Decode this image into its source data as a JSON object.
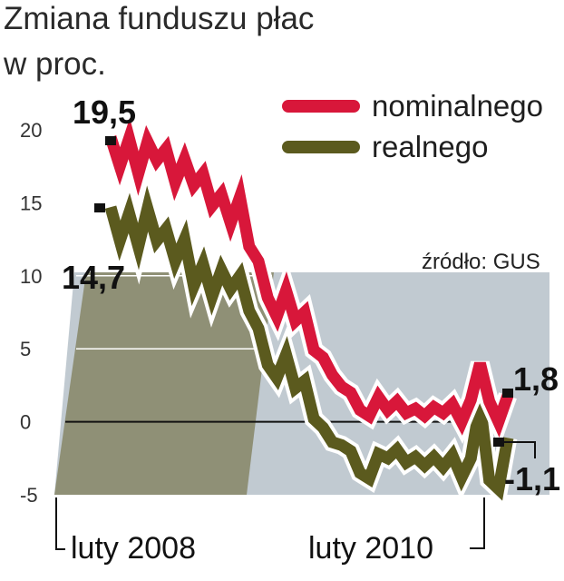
{
  "chart_data": {
    "type": "line",
    "title": "Zmiana funduszu płac",
    "subtitle": "w proc.",
    "source": "źródło: GUS",
    "ylim": [
      -5,
      20
    ],
    "yticks": [
      "20",
      "15",
      "10",
      "5",
      "0",
      "-5"
    ],
    "x_start_label": "luty 2008",
    "x_end_label": "luty 2010",
    "series": [
      {
        "name": "nominalnego",
        "color": "#d8173a",
        "values": [
          19.5,
          17.5,
          19.4,
          17.0,
          19.2,
          17.9,
          18.7,
          16.4,
          18.0,
          16.2,
          17.0,
          14.8,
          15.6,
          13.6,
          15.4,
          12.0,
          11.0,
          8.5,
          7.2,
          9.0,
          6.9,
          7.5,
          4.9,
          4.4,
          3.2,
          2.4,
          2.0,
          0.8,
          0.4,
          1.7,
          0.8,
          1.4,
          0.6,
          0.9,
          0.4,
          1.0,
          0.6,
          1.2,
          0.0,
          1.5,
          4.0,
          1.4,
          0.0,
          1.8
        ]
      },
      {
        "name": "realnego",
        "color": "#5b5a1e",
        "values": [
          14.7,
          12.4,
          14.3,
          12.0,
          14.6,
          12.4,
          13.2,
          11.0,
          12.5,
          9.3,
          10.8,
          8.6,
          10.4,
          9.1,
          10.0,
          7.6,
          6.4,
          3.9,
          3.0,
          4.6,
          2.3,
          2.8,
          0.2,
          -0.4,
          -1.4,
          -1.6,
          -2.0,
          -3.5,
          -3.9,
          -2.2,
          -2.5,
          -1.9,
          -2.8,
          -2.4,
          -3.0,
          -2.4,
          -3.1,
          -2.3,
          -3.8,
          -2.5,
          1.2,
          -4.0,
          -4.6,
          -1.1
        ]
      }
    ],
    "annotations": [
      {
        "text": "19,5",
        "value": 19.5,
        "series": "nominalnego"
      },
      {
        "text": "14,7",
        "value": 14.7,
        "series": "realnego"
      },
      {
        "text": "1,8",
        "value": 1.8,
        "series": "nominalnego"
      },
      {
        "text": "-1,1",
        "value": -1.1,
        "series": "realnego"
      }
    ],
    "grid": false
  }
}
